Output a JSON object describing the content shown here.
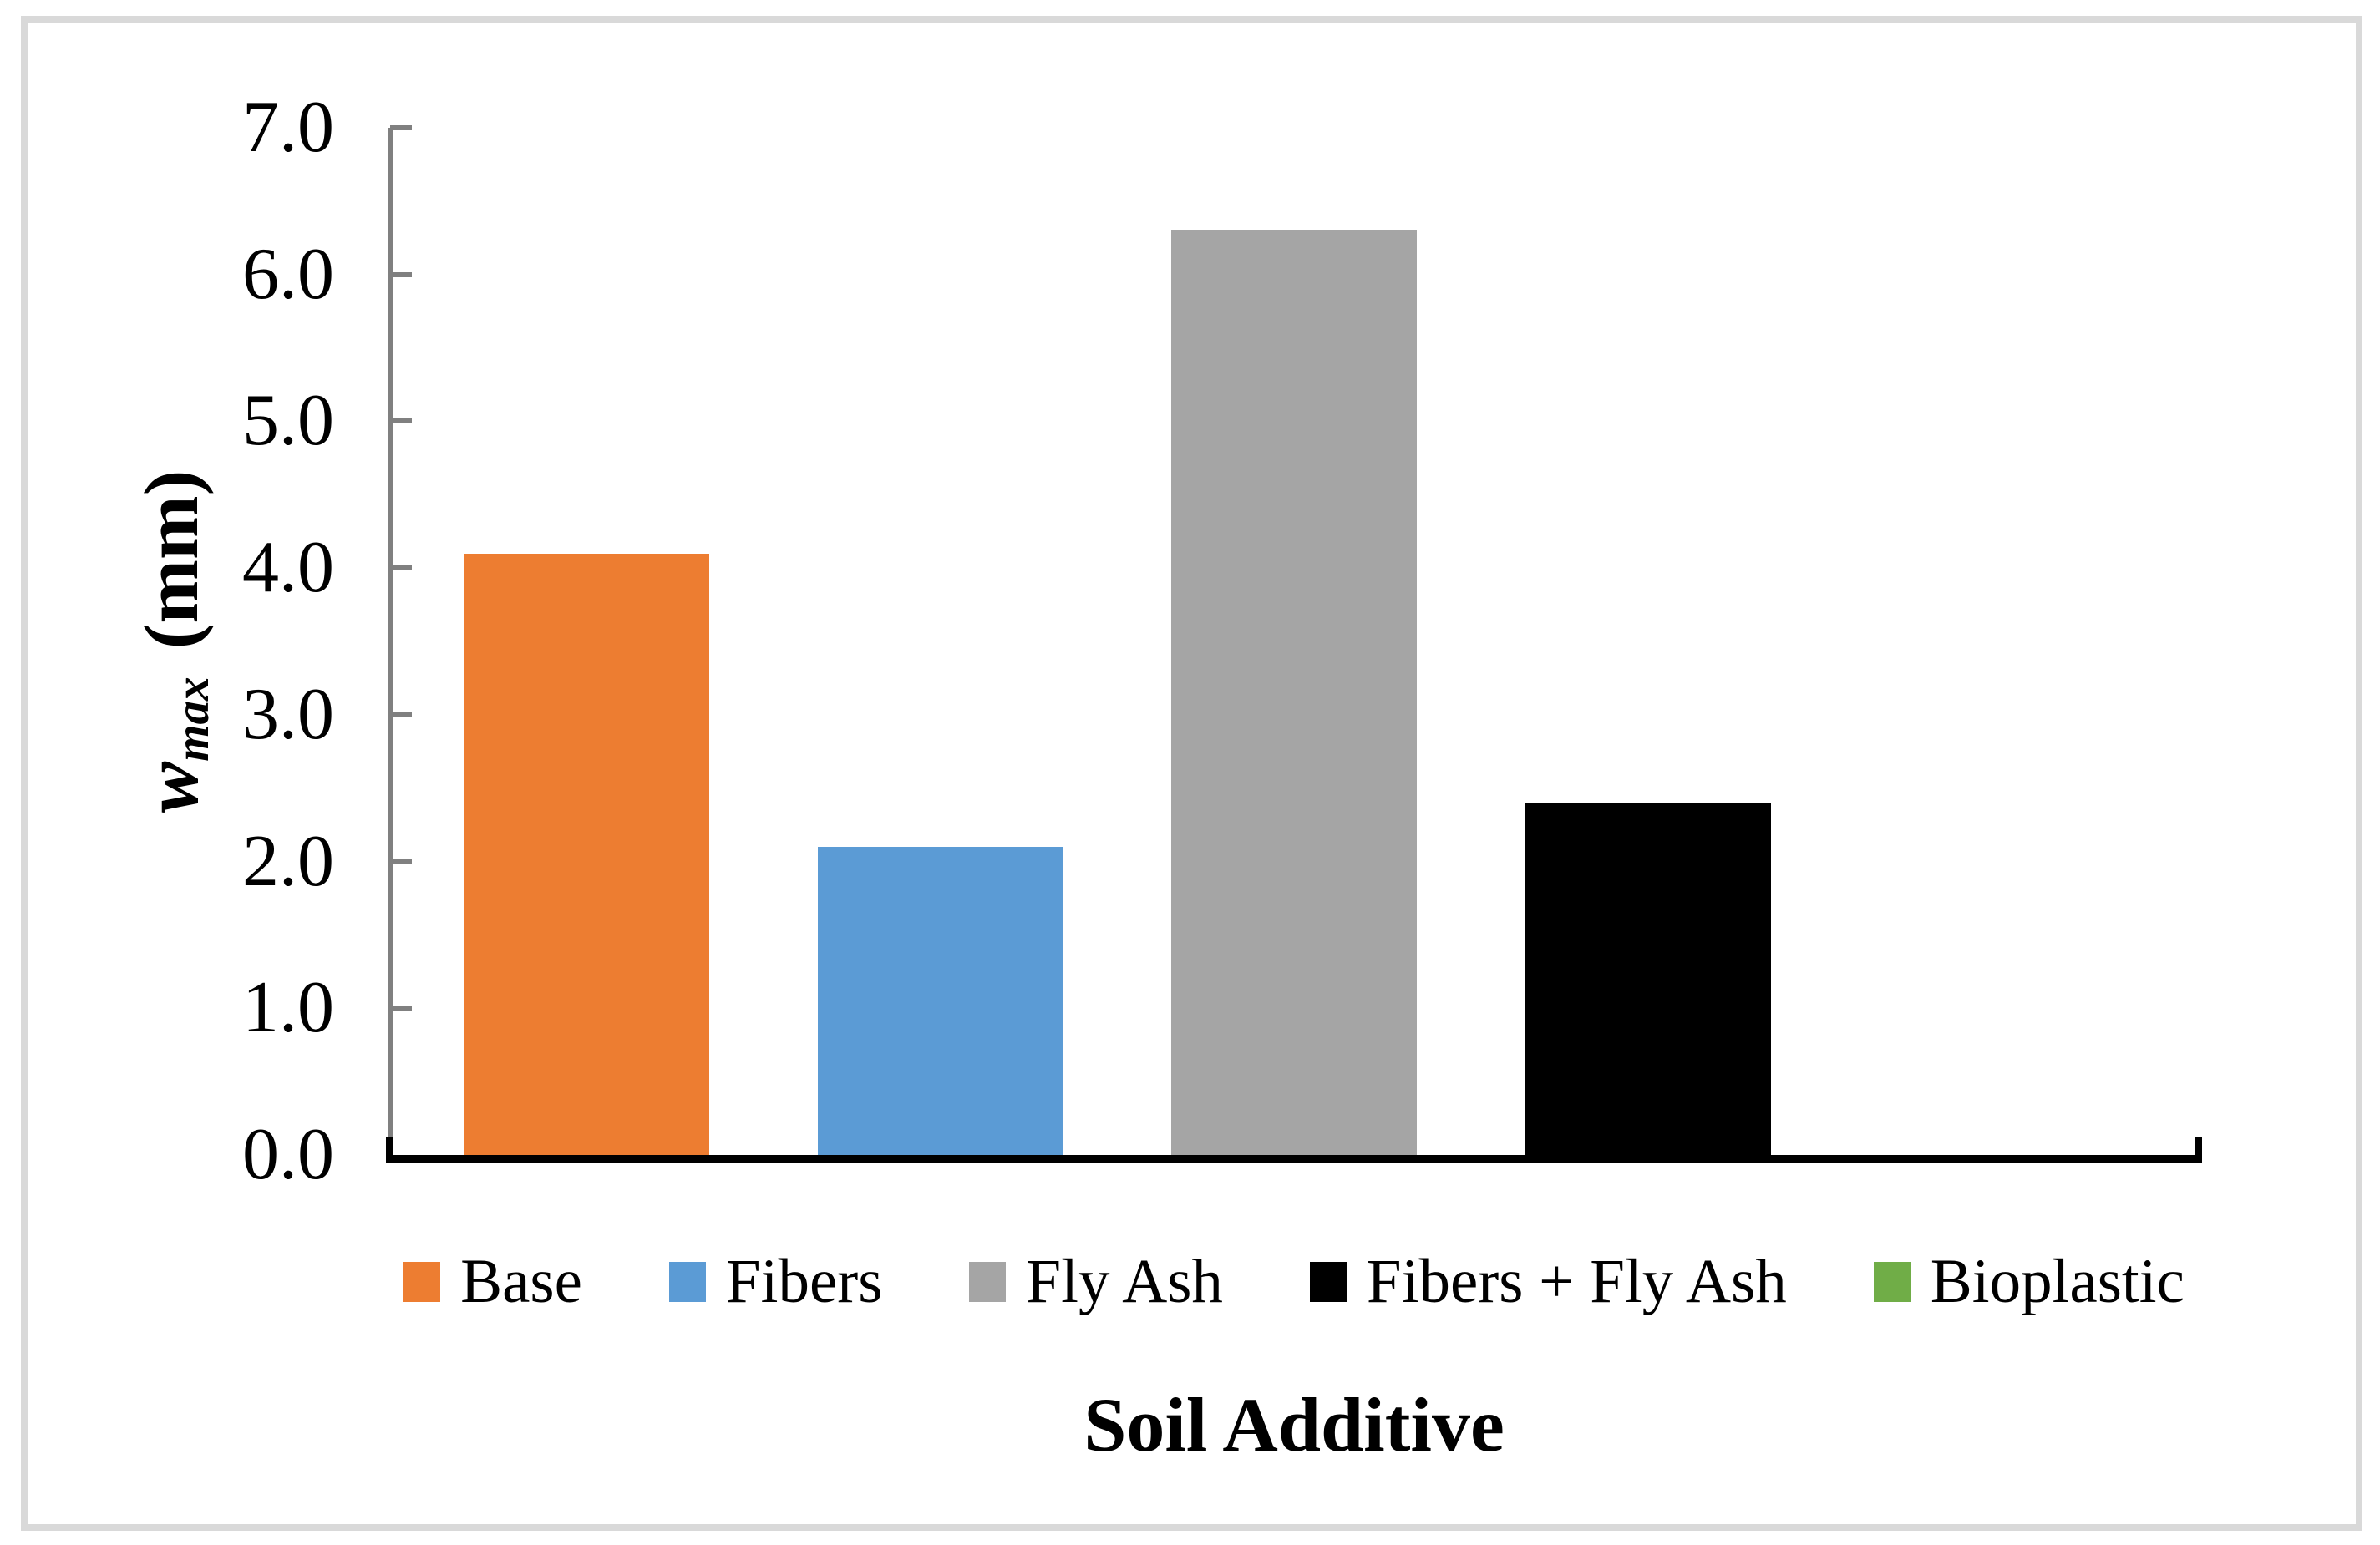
{
  "frame": {
    "border_color": "#D9D9D9",
    "background": "#FFFFFF"
  },
  "chart_data": {
    "type": "bar",
    "title": "",
    "categories": [
      "Base",
      "Fibers",
      "Fly Ash",
      "Fibers + Fly Ash",
      "Bioplastic"
    ],
    "values": [
      4.1,
      2.1,
      6.3,
      2.4,
      0
    ],
    "colors": [
      "#ED7D31",
      "#5B9BD5",
      "#A5A5A5",
      "#000000",
      "#70AD47"
    ],
    "xlabel": "Soil Additive",
    "ylabel": "w_max (mm)",
    "ylabel_parts": {
      "symbol": "w",
      "subscript": "max",
      "unit": "(mm)"
    },
    "ylim": [
      0,
      7
    ],
    "ytick_step": 1,
    "ytick_labels": [
      "7.0",
      "6.0",
      "5.0",
      "4.0",
      "3.0",
      "2.0",
      "1.0",
      "0.0"
    ],
    "grid": false,
    "legend_position": "bottom",
    "legend": [
      "Base",
      "Fibers",
      "Fly Ash",
      "Fibers + Fly Ash",
      "Bioplastic"
    ],
    "axis_colors": {
      "y_axis": "#808080",
      "x_axis": "#000000"
    }
  }
}
